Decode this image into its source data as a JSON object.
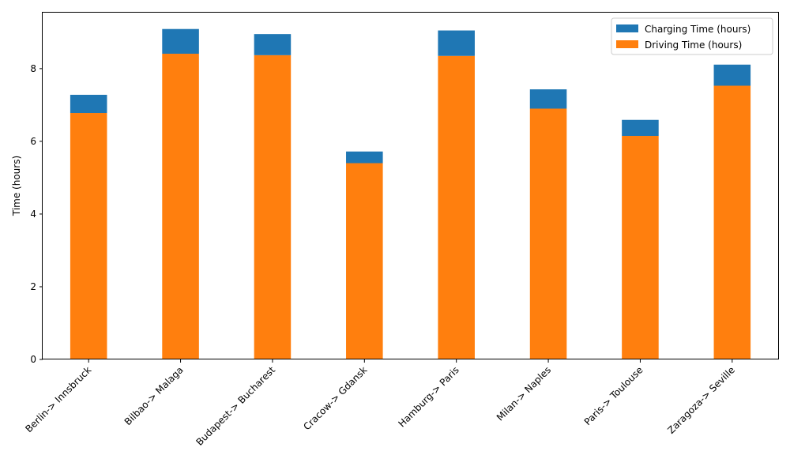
{
  "chart_data": {
    "type": "bar",
    "stacked": true,
    "categories": [
      "Berlin-> Innsbruck",
      "Bilbao-> Malaga",
      "Budapest-> Bucharest",
      "Cracow-> Gdansk",
      "Hamburg-> Paris",
      "Milan-> Naples",
      "Paris-> Toulouse",
      "Zaragoza-> Seville"
    ],
    "series": [
      {
        "name": "Driving Time (hours)",
        "color": "#ff7f0e",
        "values": [
          6.78,
          8.41,
          8.37,
          5.4,
          8.35,
          6.9,
          6.15,
          7.53
        ]
      },
      {
        "name": "Charging Time (hours)",
        "color": "#1f77b4",
        "values": [
          0.5,
          0.68,
          0.58,
          0.32,
          0.7,
          0.53,
          0.44,
          0.58
        ]
      }
    ],
    "legend_order": [
      "Charging Time (hours)",
      "Driving Time (hours)"
    ],
    "legend_position": "top-right",
    "xlabel": "",
    "ylabel": "Time (hours)",
    "ylim": [
      0,
      9.54
    ],
    "yticks": [
      0,
      2,
      4,
      6,
      8
    ],
    "grid": false
  }
}
